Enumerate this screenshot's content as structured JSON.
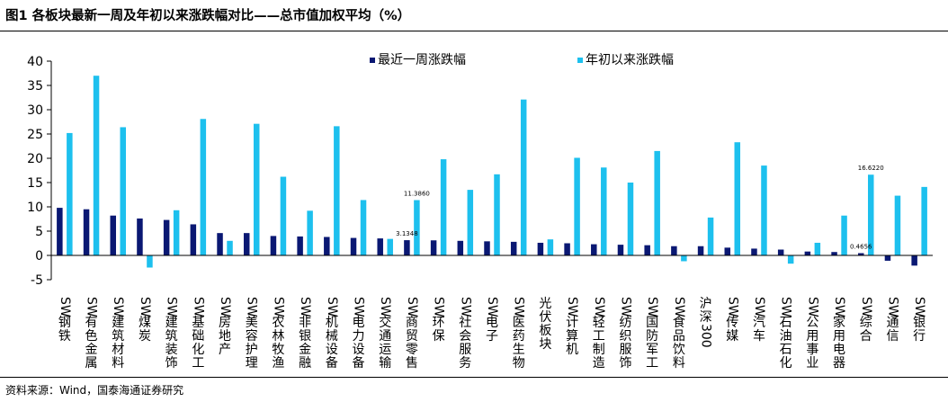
{
  "header": {
    "title": "图1   各板块最新一周及年初以来涨跌幅对比——总市值加权平均（%）"
  },
  "footer": {
    "source": "资料来源：Wind，国泰海通证券研究"
  },
  "colors": {
    "series1": "#0a1873",
    "series2": "#1dc0ee",
    "axis": "#000000"
  },
  "chart_data": {
    "type": "bar",
    "title": "",
    "xlabel": "",
    "ylabel": "",
    "ylim": [
      -5,
      40
    ],
    "yticks": [
      -5,
      0,
      5,
      10,
      15,
      20,
      25,
      30,
      35,
      40
    ],
    "grid": false,
    "legend": "top-center",
    "categories": [
      "SW钢铁",
      "SW有色金属",
      "SW建筑材料",
      "SW煤炭",
      "SW建筑装饰",
      "SW基础化工",
      "SW房地产",
      "SW美容护理",
      "SW农林牧渔",
      "SW非银金融",
      "SW机械设备",
      "SW电力设备",
      "SW交通运输",
      "SW商贸零售",
      "SW环保",
      "SW社会服务",
      "SW电子",
      "SW医药生物",
      "光伏板块",
      "SW计算机",
      "SW轻工制造",
      "SW纺织服饰",
      "SW国防军工",
      "SW食品饮料",
      "沪深300",
      "SW传媒",
      "SW汽车",
      "SW石油石化",
      "SW公用事业",
      "SW家用电器",
      "SW综合",
      "SW通信",
      "SW银行"
    ],
    "series": [
      {
        "name": "最近一周涨跌幅",
        "values": [
          9.8,
          9.5,
          8.2,
          7.6,
          7.3,
          6.4,
          4.6,
          4.6,
          4.0,
          3.9,
          3.8,
          3.6,
          3.5,
          3.1348,
          3.1,
          3.0,
          2.9,
          2.8,
          2.6,
          2.5,
          2.3,
          2.2,
          2.1,
          1.9,
          1.9,
          1.6,
          1.4,
          1.2,
          0.8,
          0.7,
          0.4656,
          -1.1,
          -2.1
        ]
      },
      {
        "name": "年初以来涨跌幅",
        "values": [
          25.2,
          37.0,
          26.4,
          -2.5,
          9.3,
          28.1,
          3.0,
          27.1,
          16.2,
          9.2,
          26.6,
          11.4,
          3.4,
          11.386,
          19.8,
          13.5,
          16.7,
          32.1,
          3.3,
          20.1,
          18.1,
          15.0,
          21.5,
          -1.2,
          7.8,
          23.3,
          18.5,
          -1.7,
          2.6,
          8.2,
          16.622,
          12.3,
          14.1
        ]
      }
    ],
    "data_labels": [
      {
        "category_index": 13,
        "series_index": 0,
        "text": "3.1348"
      },
      {
        "category_index": 13,
        "series_index": 1,
        "text": "11.3860"
      },
      {
        "category_index": 30,
        "series_index": 0,
        "text": "0.4656"
      },
      {
        "category_index": 30,
        "series_index": 1,
        "text": "16.6220"
      }
    ]
  }
}
